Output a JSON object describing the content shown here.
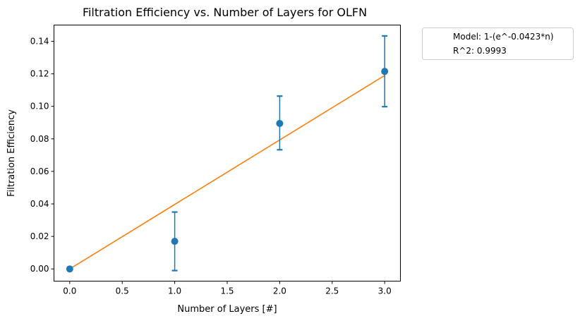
{
  "chart_data": {
    "type": "scatter",
    "title": "Filtration Efficiency vs. Number of Layers for OLFN",
    "xlabel": "Number of Layers [#]",
    "ylabel": "Filtration Efficiency",
    "xlim": [
      -0.15,
      3.15
    ],
    "ylim": [
      -0.0075,
      0.15
    ],
    "xticks": [
      0.0,
      0.5,
      1.0,
      1.5,
      2.0,
      2.5,
      3.0
    ],
    "xtick_labels": [
      "0.0",
      "0.5",
      "1.0",
      "1.5",
      "2.0",
      "2.5",
      "3.0"
    ],
    "yticks": [
      0.0,
      0.02,
      0.04,
      0.06,
      0.08,
      0.1,
      0.12,
      0.14
    ],
    "ytick_labels": [
      "0.00",
      "0.02",
      "0.04",
      "0.06",
      "0.08",
      "0.10",
      "0.12",
      "0.14"
    ],
    "grid": false,
    "legend_position": "outside-upper-right",
    "series": [
      {
        "kind": "points-with-error",
        "color": "#1f77b4",
        "x": [
          0,
          1,
          2,
          3
        ],
        "y": [
          0.0,
          0.017,
          0.0895,
          0.1215
        ],
        "yerr_low": [
          0.0,
          0.018,
          0.0162,
          0.0217
        ],
        "yerr_high": [
          0.0,
          0.018,
          0.0168,
          0.0218
        ]
      },
      {
        "kind": "fit-line",
        "color": "#ff7f0e",
        "x": [
          0,
          3
        ],
        "y": [
          0.0,
          0.119
        ]
      }
    ],
    "legend": {
      "entries": [
        "Model: 1-(e^-0.0423*n)",
        "R^2: 0.9993"
      ]
    }
  }
}
